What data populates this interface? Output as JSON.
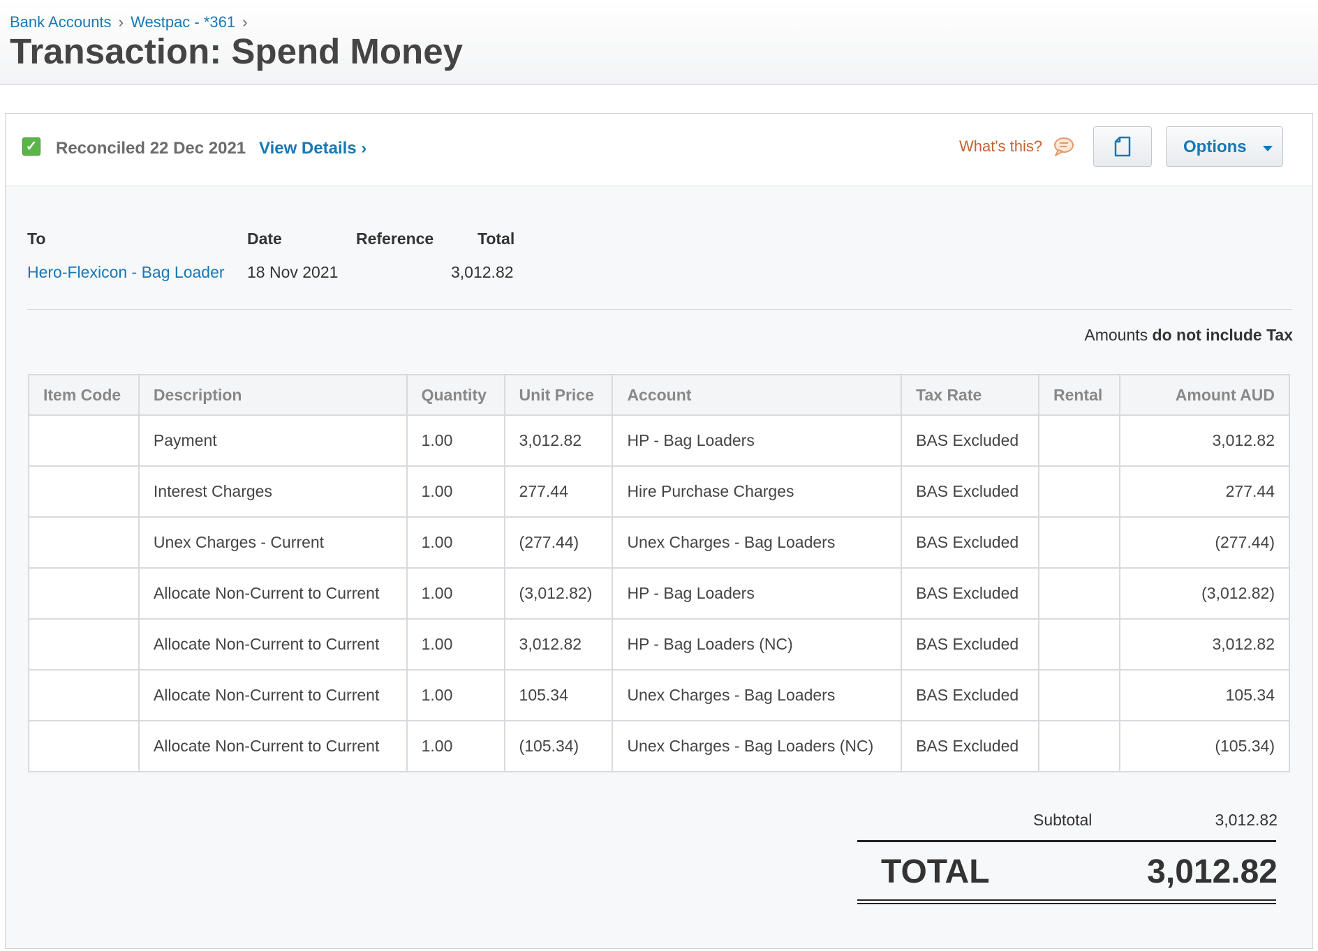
{
  "breadcrumb": {
    "item1": "Bank Accounts",
    "item2": "Westpac - *361",
    "separator": "›"
  },
  "page_title": "Transaction: Spend Money",
  "status": {
    "reconciled_text": "Reconciled 22 Dec 2021",
    "view_details": "View Details ›",
    "whats_this": "What's this?",
    "options_label": "Options"
  },
  "summary": {
    "to_label": "To",
    "date_label": "Date",
    "reference_label": "Reference",
    "total_label": "Total",
    "to_value": "Hero-Flexicon - Bag Loader",
    "date_value": "18 Nov 2021",
    "reference_value": "",
    "total_value": "3,012.82"
  },
  "tax_note": {
    "prefix": "Amounts",
    "bold": "do not include Tax"
  },
  "table": {
    "headers": [
      "Item Code",
      "Description",
      "Quantity",
      "Unit Price",
      "Account",
      "Tax Rate",
      "Rental",
      "Amount AUD"
    ],
    "rows": [
      {
        "item_code": "",
        "description": "Payment",
        "quantity": "1.00",
        "unit_price": "3,012.82",
        "account": "HP - Bag Loaders",
        "tax_rate": "BAS Excluded",
        "rental": "",
        "amount": "3,012.82"
      },
      {
        "item_code": "",
        "description": "Interest Charges",
        "quantity": "1.00",
        "unit_price": "277.44",
        "account": "Hire Purchase Charges",
        "tax_rate": "BAS Excluded",
        "rental": "",
        "amount": "277.44"
      },
      {
        "item_code": "",
        "description": "Unex Charges - Current",
        "quantity": "1.00",
        "unit_price": "(277.44)",
        "account": "Unex Charges - Bag Loaders",
        "tax_rate": "BAS Excluded",
        "rental": "",
        "amount": "(277.44)"
      },
      {
        "item_code": "",
        "description": "Allocate Non-Current to Current",
        "quantity": "1.00",
        "unit_price": "(3,012.82)",
        "account": "HP - Bag Loaders",
        "tax_rate": "BAS Excluded",
        "rental": "",
        "amount": "(3,012.82)"
      },
      {
        "item_code": "",
        "description": "Allocate Non-Current to Current",
        "quantity": "1.00",
        "unit_price": "3,012.82",
        "account": "HP - Bag Loaders (NC)",
        "tax_rate": "BAS Excluded",
        "rental": "",
        "amount": "3,012.82"
      },
      {
        "item_code": "",
        "description": "Allocate Non-Current to Current",
        "quantity": "1.00",
        "unit_price": "105.34",
        "account": "Unex Charges - Bag Loaders",
        "tax_rate": "BAS Excluded",
        "rental": "",
        "amount": "105.34"
      },
      {
        "item_code": "",
        "description": "Allocate Non-Current to Current",
        "quantity": "1.00",
        "unit_price": "(105.34)",
        "account": "Unex Charges - Bag Loaders (NC)",
        "tax_rate": "BAS Excluded",
        "rental": "",
        "amount": "(105.34)"
      }
    ]
  },
  "totals": {
    "subtotal_label": "Subtotal",
    "subtotal_value": "3,012.82",
    "total_label": "TOTAL",
    "total_value": "3,012.82"
  },
  "icons": {
    "reconciled": "checkbox-checked-icon",
    "whats_this": "speech-bubble-icon",
    "document": "document-icon",
    "options_caret": "caret-down-icon"
  },
  "colors": {
    "link": "#1778b6",
    "whats_this": "#c4622d",
    "reconciled_check": "#5bb547"
  }
}
